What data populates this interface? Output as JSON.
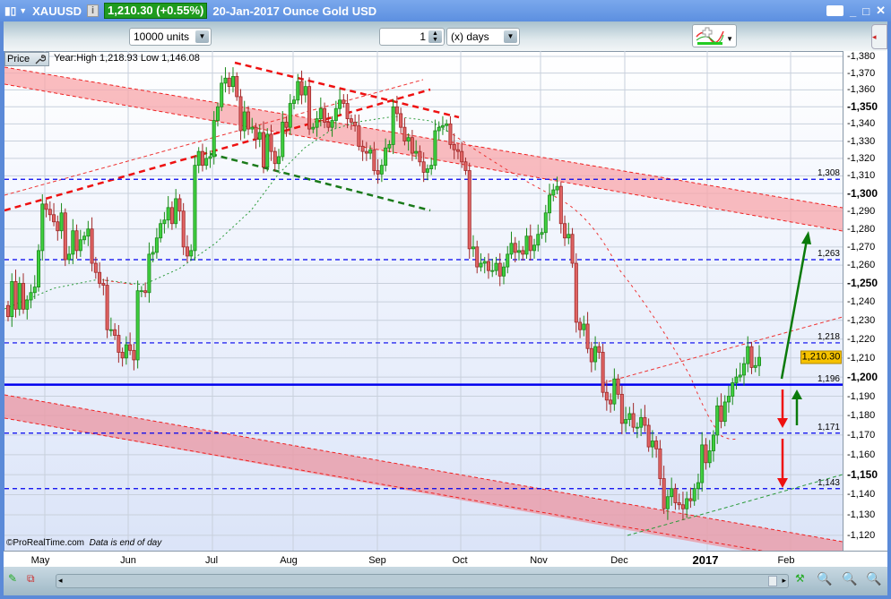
{
  "window": {
    "symbol": "XAUUSD",
    "price_badge": "1,210.30 (+0.55%)",
    "description": "20-Jan-2017 Ounce Gold USD",
    "badge_color": "#1f9b1f",
    "controls": {
      "minimize": "_",
      "maximize": "□",
      "close": "✕"
    }
  },
  "toolbar": {
    "units": "10000 units",
    "period_value": "1",
    "period_unit": "(x) days"
  },
  "panel": {
    "price_label": "Price",
    "info": "Year:High 1,218.93 Low 1,146.08",
    "copyright": "©ProRealTime.com",
    "note": "Data is end of day"
  },
  "chart_data": {
    "type": "candlestick",
    "scale": "log",
    "ylim": [
      1120,
      1380
    ],
    "y_ticks": [
      1380,
      1370,
      1360,
      1350,
      1340,
      1330,
      1320,
      1310,
      1300,
      1290,
      1280,
      1270,
      1260,
      1250,
      1240,
      1230,
      1220,
      1210,
      1200,
      1190,
      1180,
      1170,
      1160,
      1150,
      1140,
      1130,
      1120
    ],
    "y_tick_labels": [
      "1,380",
      "1,370",
      "1,360",
      "1,350",
      "1,340",
      "1,330",
      "1,320",
      "1,310",
      "1,300",
      "1,290",
      "1,280",
      "1,270",
      "1,260",
      "1,250",
      "1,240",
      "1,230",
      "1,220",
      "1,210",
      "1,200",
      "1,190",
      "1,180",
      "1,170",
      "1,160",
      "1,150",
      "1,140",
      "1,130",
      "1,120"
    ],
    "bold_ticks": [
      1350,
      1300,
      1250,
      1200,
      1150
    ],
    "x_labels": [
      "May",
      "Jun",
      "Jul",
      "Aug",
      "Sep",
      "Oct",
      "Nov",
      "Dec",
      "2017",
      "Feb"
    ],
    "grid": true,
    "last_price": "1,210.30",
    "levels": [
      {
        "value": 1308,
        "label": "1,308",
        "style": "dashed"
      },
      {
        "value": 1263,
        "label": "1,263",
        "style": "dashed"
      },
      {
        "value": 1218,
        "label": "1,218",
        "style": "dashed"
      },
      {
        "value": 1196,
        "label": "1,196",
        "style": "solid"
      },
      {
        "value": 1171,
        "label": "1,171",
        "style": "dashed"
      },
      {
        "value": 1143,
        "label": "1,143",
        "style": "dashed"
      }
    ],
    "first_open": 1238,
    "closes": [
      1232,
      1251,
      1236,
      1250,
      1236,
      1241,
      1245,
      1248,
      1268,
      1294,
      1291,
      1288,
      1284,
      1279,
      1289,
      1263,
      1266,
      1279,
      1268,
      1274,
      1276,
      1280,
      1261,
      1256,
      1250,
      1249,
      1225,
      1225,
      1222,
      1213,
      1210,
      1217,
      1214,
      1209,
      1246,
      1246,
      1245,
      1266,
      1267,
      1275,
      1283,
      1285,
      1292,
      1283,
      1297,
      1290,
      1270,
      1265,
      1268,
      1316,
      1324,
      1316,
      1320,
      1321,
      1342,
      1350,
      1364,
      1367,
      1362,
      1368,
      1356,
      1336,
      1347,
      1337,
      1338,
      1331,
      1335,
      1315,
      1334,
      1324,
      1317,
      1321,
      1341,
      1338,
      1352,
      1354,
      1365,
      1357,
      1362,
      1337,
      1338,
      1343,
      1349,
      1341,
      1338,
      1342,
      1349,
      1354,
      1352,
      1343,
      1341,
      1339,
      1327,
      1324,
      1323,
      1325,
      1313,
      1311,
      1316,
      1326,
      1328,
      1350,
      1346,
      1338,
      1330,
      1332,
      1323,
      1324,
      1318,
      1312,
      1314,
      1316,
      1336,
      1338,
      1339,
      1340,
      1328,
      1325,
      1324,
      1318,
      1313,
      1269,
      1270,
      1259,
      1261,
      1262,
      1257,
      1257,
      1261,
      1254,
      1259,
      1266,
      1272,
      1267,
      1268,
      1266,
      1276,
      1268,
      1271,
      1277,
      1278,
      1289,
      1299,
      1302,
      1304,
      1283,
      1275,
      1277,
      1261,
      1229,
      1225,
      1228,
      1215,
      1208,
      1216,
      1213,
      1192,
      1188,
      1186,
      1199,
      1191,
      1176,
      1178,
      1181,
      1174,
      1174,
      1179,
      1175,
      1164,
      1167,
      1163,
      1148,
      1133,
      1139,
      1143,
      1136,
      1135,
      1133,
      1138,
      1137,
      1143,
      1146,
      1165,
      1156,
      1162,
      1170,
      1185,
      1177,
      1187,
      1190,
      1197,
      1200,
      1201,
      1207,
      1216,
      1205,
      1206,
      1210.3
    ],
    "colors": {
      "up": "#3fcf3f",
      "down": "#e06464",
      "level": "#0000ee",
      "channel": "#f7a8ae"
    }
  },
  "colors": {
    "frame": "#5b8ad8",
    "price_tag": "#f6c200"
  }
}
